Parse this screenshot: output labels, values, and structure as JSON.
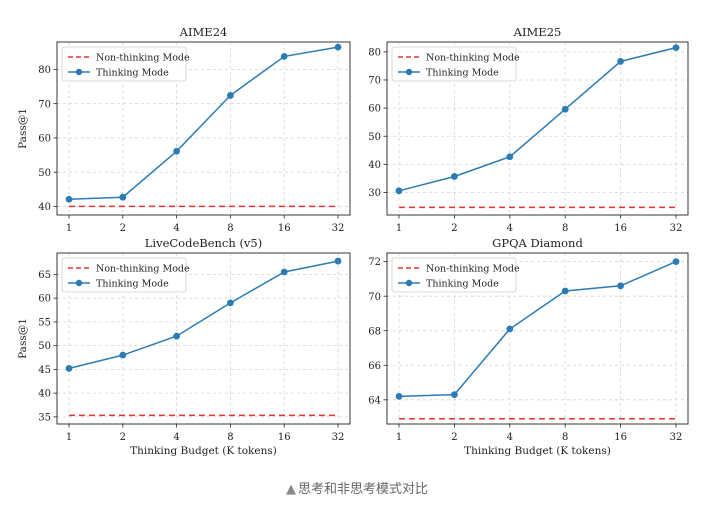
{
  "caption": {
    "text": "思考和非思考模式对比"
  },
  "chart_data": [
    {
      "type": "line",
      "title": "AIME24",
      "xlabel": "",
      "ylabel": "Pass@1",
      "x": [
        1,
        2,
        4,
        8,
        16,
        32
      ],
      "xscale": "log2",
      "ylim": [
        37.5,
        88
      ],
      "yticks": [
        40,
        50,
        60,
        70,
        80
      ],
      "grid": true,
      "legend": "top-left",
      "series": [
        {
          "name": "Non-thinking Mode",
          "style": "dashed",
          "color": "#e8332c",
          "values": [
            40,
            40,
            40,
            40,
            40,
            40
          ]
        },
        {
          "name": "Thinking Mode",
          "style": "line-marker",
          "color": "#2b7bb4",
          "values": [
            42.1,
            42.7,
            56.1,
            72.4,
            83.8,
            86.5
          ]
        }
      ]
    },
    {
      "type": "line",
      "title": "AIME25",
      "xlabel": "",
      "ylabel": "",
      "x": [
        1,
        2,
        4,
        8,
        16,
        32
      ],
      "xscale": "log2",
      "ylim": [
        22,
        83.5
      ],
      "yticks": [
        30,
        40,
        50,
        60,
        70,
        80
      ],
      "grid": true,
      "legend": "top-left",
      "series": [
        {
          "name": "Non-thinking Mode",
          "style": "dashed",
          "color": "#e8332c",
          "values": [
            24.7,
            24.7,
            24.7,
            24.7,
            24.7,
            24.7
          ]
        },
        {
          "name": "Thinking Mode",
          "style": "line-marker",
          "color": "#2b7bb4",
          "values": [
            30.6,
            35.7,
            42.7,
            59.6,
            76.6,
            81.5
          ]
        }
      ]
    },
    {
      "type": "line",
      "title": "LiveCodeBench (v5)",
      "xlabel": "Thinking Budget (K tokens)",
      "ylabel": "Pass@1",
      "x": [
        1,
        2,
        4,
        8,
        16,
        32
      ],
      "xscale": "log2",
      "ylim": [
        33.5,
        69.5
      ],
      "yticks": [
        35,
        40,
        45,
        50,
        55,
        60,
        65
      ],
      "grid": true,
      "legend": "top-left",
      "series": [
        {
          "name": "Non-thinking Mode",
          "style": "dashed",
          "color": "#e8332c",
          "values": [
            35.3,
            35.3,
            35.3,
            35.3,
            35.3,
            35.3
          ]
        },
        {
          "name": "Thinking Mode",
          "style": "line-marker",
          "color": "#2b7bb4",
          "values": [
            45.2,
            48.0,
            52.0,
            59.0,
            65.5,
            67.8
          ]
        }
      ]
    },
    {
      "type": "line",
      "title": "GPQA Diamond",
      "xlabel": "Thinking Budget (K tokens)",
      "ylabel": "",
      "x": [
        1,
        2,
        4,
        8,
        16,
        32
      ],
      "xscale": "log2",
      "ylim": [
        62.6,
        72.5
      ],
      "yticks": [
        64,
        66,
        68,
        70,
        72
      ],
      "grid": true,
      "legend": "top-left",
      "series": [
        {
          "name": "Non-thinking Mode",
          "style": "dashed",
          "color": "#e8332c",
          "values": [
            62.9,
            62.9,
            62.9,
            62.9,
            62.9,
            62.9
          ]
        },
        {
          "name": "Thinking Mode",
          "style": "line-marker",
          "color": "#2b7bb4",
          "values": [
            64.2,
            64.3,
            68.1,
            70.3,
            70.6,
            72.0
          ]
        }
      ]
    }
  ]
}
